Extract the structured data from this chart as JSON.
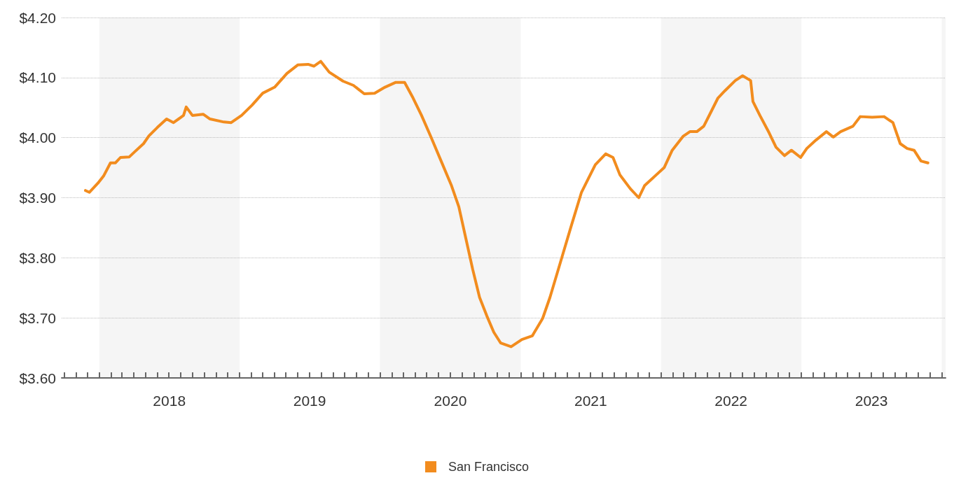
{
  "chart_data": {
    "type": "line",
    "x": [
      "2017-11-26",
      "2017-12-06",
      "2017-12-28",
      "2018-01-12",
      "2018-01-30",
      "2018-02-12",
      "2018-02-25",
      "2018-03-20",
      "2018-04-04",
      "2018-04-26",
      "2018-05-10",
      "2018-06-01",
      "2018-06-25",
      "2018-07-13",
      "2018-08-08",
      "2018-08-15",
      "2018-08-31",
      "2018-09-28",
      "2018-10-16",
      "2018-11-21",
      "2018-12-10",
      "2019-01-06",
      "2019-02-02",
      "2019-03-02",
      "2019-04-02",
      "2019-05-04",
      "2019-06-01",
      "2019-06-28",
      "2019-07-13",
      "2019-07-31",
      "2019-08-22",
      "2019-09-27",
      "2019-10-24",
      "2019-11-21",
      "2019-12-18",
      "2020-01-14",
      "2020-02-11",
      "2020-03-05",
      "2020-03-27",
      "2020-04-18",
      "2020-05-12",
      "2020-06-08",
      "2020-07-05",
      "2020-07-24",
      "2020-08-11",
      "2020-08-29",
      "2020-09-16",
      "2020-10-05",
      "2020-10-23",
      "2020-11-10",
      "2020-12-07",
      "2021-01-04",
      "2021-01-31",
      "2021-02-27",
      "2021-03-18",
      "2021-04-14",
      "2021-05-11",
      "2021-06-08",
      "2021-07-14",
      "2021-08-10",
      "2021-08-29",
      "2021-09-16",
      "2021-10-13",
      "2021-11-04",
      "2021-11-19",
      "2021-12-16",
      "2022-01-09",
      "2022-01-30",
      "2022-02-27",
      "2022-03-17",
      "2022-04-04",
      "2022-04-22",
      "2022-05-11",
      "2022-05-29",
      "2022-06-16",
      "2022-07-13",
      "2022-08-01",
      "2022-08-22",
      "2022-08-28",
      "2022-09-15",
      "2022-10-09",
      "2022-10-27",
      "2022-11-18",
      "2022-12-06",
      "2022-12-30",
      "2023-01-15",
      "2023-02-08",
      "2023-03-07",
      "2023-03-25",
      "2023-04-13",
      "2023-05-15",
      "2023-06-03",
      "2023-07-04",
      "2023-08-04",
      "2023-08-27",
      "2023-09-15",
      "2023-10-03",
      "2023-10-21",
      "2023-11-08",
      "2023-11-26"
    ],
    "series": [
      {
        "name": "San Francisco",
        "color": "#f28c1e",
        "values": [
          3.912,
          3.909,
          3.924,
          3.936,
          3.958,
          3.958,
          3.967,
          3.968,
          3.977,
          3.99,
          4.003,
          4.017,
          4.031,
          4.025,
          4.037,
          4.051,
          4.037,
          4.039,
          4.031,
          4.026,
          4.025,
          4.037,
          4.054,
          4.074,
          4.084,
          4.107,
          4.121,
          4.122,
          4.119,
          4.127,
          4.109,
          4.094,
          4.087,
          4.073,
          4.074,
          4.084,
          4.092,
          4.092,
          4.066,
          4.037,
          4.002,
          3.961,
          3.92,
          3.885,
          3.833,
          3.781,
          3.734,
          3.703,
          3.676,
          3.658,
          3.652,
          3.664,
          3.67,
          3.699,
          3.734,
          3.792,
          3.85,
          3.909,
          3.955,
          3.973,
          3.967,
          3.938,
          3.915,
          3.9,
          3.92,
          3.936,
          3.95,
          3.979,
          4.002,
          4.01,
          4.01,
          4.019,
          4.043,
          4.066,
          4.078,
          4.095,
          4.103,
          4.095,
          4.06,
          4.037,
          4.008,
          3.984,
          3.97,
          3.979,
          3.967,
          3.982,
          3.996,
          4.01,
          4.001,
          4.01,
          4.019,
          4.035,
          4.034,
          4.035,
          4.025,
          3.99,
          3.982,
          3.979,
          3.961,
          3.958
        ]
      }
    ],
    "xlim": [
      "2017-09-25",
      "2024-01-11"
    ],
    "xticks": [
      {
        "value": "2017-10-01",
        "label": null
      },
      {
        "value": "2017-11-01",
        "label": null
      },
      {
        "value": "2017-12-01",
        "label": null
      },
      {
        "value": "2018-01-01",
        "label": null
      },
      {
        "value": "2018-02-01",
        "label": null
      },
      {
        "value": "2018-03-01",
        "label": null
      },
      {
        "value": "2018-04-01",
        "label": null
      },
      {
        "value": "2018-05-01",
        "label": null
      },
      {
        "value": "2018-06-01",
        "label": null
      },
      {
        "value": "2018-07-01",
        "label": null
      },
      {
        "value": "2018-08-01",
        "label": null
      },
      {
        "value": "2018-09-01",
        "label": null
      },
      {
        "value": "2018-10-01",
        "label": null
      },
      {
        "value": "2018-11-01",
        "label": null
      },
      {
        "value": "2018-12-01",
        "label": null
      },
      {
        "value": "2019-01-01",
        "label": null
      },
      {
        "value": "2019-02-01",
        "label": null
      },
      {
        "value": "2019-03-01",
        "label": null
      },
      {
        "value": "2019-04-01",
        "label": null
      },
      {
        "value": "2019-05-01",
        "label": null
      },
      {
        "value": "2019-06-01",
        "label": null
      },
      {
        "value": "2019-07-01",
        "label": null
      },
      {
        "value": "2019-08-01",
        "label": null
      },
      {
        "value": "2019-09-01",
        "label": null
      },
      {
        "value": "2019-10-01",
        "label": null
      },
      {
        "value": "2019-11-01",
        "label": null
      },
      {
        "value": "2019-12-01",
        "label": null
      },
      {
        "value": "2020-01-01",
        "label": null
      },
      {
        "value": "2020-02-01",
        "label": null
      },
      {
        "value": "2020-03-01",
        "label": null
      },
      {
        "value": "2020-04-01",
        "label": null
      },
      {
        "value": "2020-05-01",
        "label": null
      },
      {
        "value": "2020-06-01",
        "label": null
      },
      {
        "value": "2020-07-01",
        "label": null
      },
      {
        "value": "2020-08-01",
        "label": null
      },
      {
        "value": "2020-09-01",
        "label": null
      },
      {
        "value": "2020-10-01",
        "label": null
      },
      {
        "value": "2020-11-01",
        "label": null
      },
      {
        "value": "2020-12-01",
        "label": null
      },
      {
        "value": "2021-01-01",
        "label": null
      },
      {
        "value": "2021-02-01",
        "label": null
      },
      {
        "value": "2021-03-01",
        "label": null
      },
      {
        "value": "2021-04-01",
        "label": null
      },
      {
        "value": "2021-05-01",
        "label": null
      },
      {
        "value": "2021-06-01",
        "label": null
      },
      {
        "value": "2021-07-01",
        "label": null
      },
      {
        "value": "2021-08-01",
        "label": null
      },
      {
        "value": "2021-09-01",
        "label": null
      },
      {
        "value": "2021-10-01",
        "label": null
      },
      {
        "value": "2021-11-01",
        "label": null
      },
      {
        "value": "2021-12-01",
        "label": null
      },
      {
        "value": "2022-01-01",
        "label": null
      },
      {
        "value": "2022-02-01",
        "label": null
      },
      {
        "value": "2022-03-01",
        "label": null
      },
      {
        "value": "2022-04-01",
        "label": null
      },
      {
        "value": "2022-05-01",
        "label": null
      },
      {
        "value": "2022-06-01",
        "label": null
      },
      {
        "value": "2022-07-01",
        "label": null
      },
      {
        "value": "2022-08-01",
        "label": null
      },
      {
        "value": "2022-09-01",
        "label": null
      },
      {
        "value": "2022-10-01",
        "label": null
      },
      {
        "value": "2022-11-01",
        "label": null
      },
      {
        "value": "2022-12-01",
        "label": null
      },
      {
        "value": "2023-01-01",
        "label": null
      },
      {
        "value": "2023-02-01",
        "label": null
      },
      {
        "value": "2023-03-01",
        "label": null
      },
      {
        "value": "2023-04-01",
        "label": null
      },
      {
        "value": "2023-05-01",
        "label": null
      },
      {
        "value": "2023-06-01",
        "label": null
      },
      {
        "value": "2023-07-01",
        "label": null
      },
      {
        "value": "2023-08-01",
        "label": null
      },
      {
        "value": "2023-09-01",
        "label": null
      },
      {
        "value": "2023-10-01",
        "label": null
      },
      {
        "value": "2023-11-01",
        "label": null
      },
      {
        "value": "2023-12-01",
        "label": null
      },
      {
        "value": "2024-01-01",
        "label": null
      },
      {
        "value": "2018-07-02",
        "label": "2018"
      },
      {
        "value": "2019-07-02",
        "label": "2019"
      },
      {
        "value": "2020-07-02",
        "label": "2020"
      },
      {
        "value": "2021-07-02",
        "label": "2021"
      },
      {
        "value": "2022-07-02",
        "label": "2022"
      },
      {
        "value": "2023-07-02",
        "label": "2023"
      }
    ],
    "ylim": [
      3.6,
      4.2
    ],
    "yticks": [
      {
        "value": 3.6,
        "label": "$3.60"
      },
      {
        "value": 3.7,
        "label": "$3.70"
      },
      {
        "value": 3.8,
        "label": "$3.80"
      },
      {
        "value": 3.9,
        "label": "$3.90"
      },
      {
        "value": 4.0,
        "label": "$4.00"
      },
      {
        "value": 4.1,
        "label": "$4.10"
      },
      {
        "value": 4.2,
        "label": "$4.20"
      }
    ],
    "bands": [
      {
        "axis": "x",
        "from": "2018-01-01",
        "to": "2019-01-01",
        "color": "#f5f5f5"
      },
      {
        "axis": "x",
        "from": "2020-01-01",
        "to": "2021-01-01",
        "color": "#f5f5f5"
      },
      {
        "axis": "x",
        "from": "2022-01-01",
        "to": "2023-01-01",
        "color": "#f5f5f5"
      },
      {
        "axis": "x",
        "from": "2024-01-01",
        "to": "2024-01-11",
        "color": "#f5f5f5"
      }
    ],
    "grid": "y",
    "legend": "bottom",
    "marker": "none",
    "line_style": "solid"
  }
}
